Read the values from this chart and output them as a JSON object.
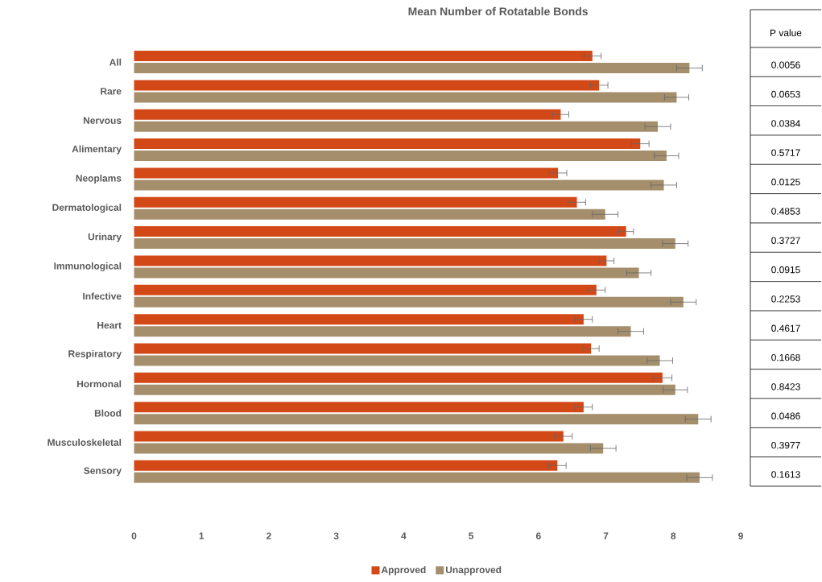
{
  "chart_data": {
    "type": "bar",
    "orientation": "horizontal",
    "title": "Mean Number of Rotatable Bonds",
    "categories": [
      "All",
      "Rare",
      "Nervous",
      "Alimentary",
      "Neoplams",
      "Dermatological",
      "Urinary",
      "Immunological",
      "Infective",
      "Heart",
      "Respiratory",
      "Hormonal",
      "Blood",
      "Musculoskeletal",
      "Sensory"
    ],
    "series": [
      {
        "name": "Approved",
        "color": "#d34817",
        "values": [
          6.8,
          6.9,
          6.33,
          7.51,
          6.29,
          6.57,
          7.3,
          7.01,
          6.86,
          6.67,
          6.78,
          7.84,
          6.67,
          6.37,
          6.28
        ],
        "errors": [
          0.13,
          0.13,
          0.12,
          0.13,
          0.13,
          0.13,
          0.11,
          0.11,
          0.13,
          0.13,
          0.12,
          0.14,
          0.13,
          0.13,
          0.13
        ]
      },
      {
        "name": "Unapproved",
        "color": "#a48e6c",
        "values": [
          8.24,
          8.05,
          7.77,
          7.9,
          7.86,
          6.99,
          8.03,
          7.49,
          8.15,
          7.37,
          7.8,
          8.03,
          8.37,
          6.96,
          8.39
        ],
        "errors": [
          0.19,
          0.18,
          0.19,
          0.18,
          0.19,
          0.19,
          0.19,
          0.18,
          0.19,
          0.19,
          0.19,
          0.18,
          0.19,
          0.19,
          0.19
        ]
      }
    ],
    "xlim": [
      0,
      9
    ],
    "xticks": [
      0,
      1,
      2,
      3,
      4,
      5,
      6,
      7,
      8,
      9
    ],
    "legend": "bottom",
    "annotations": [
      "P value",
      "0.0056",
      "0.0653",
      "0.0384",
      "0.5717",
      "0.0125",
      "0.4853",
      "0.3727",
      "0.0915",
      "0.2253",
      "0.4617",
      "0.1668",
      "0.8423",
      "0.0486",
      "0.3977",
      "0.1613"
    ]
  }
}
